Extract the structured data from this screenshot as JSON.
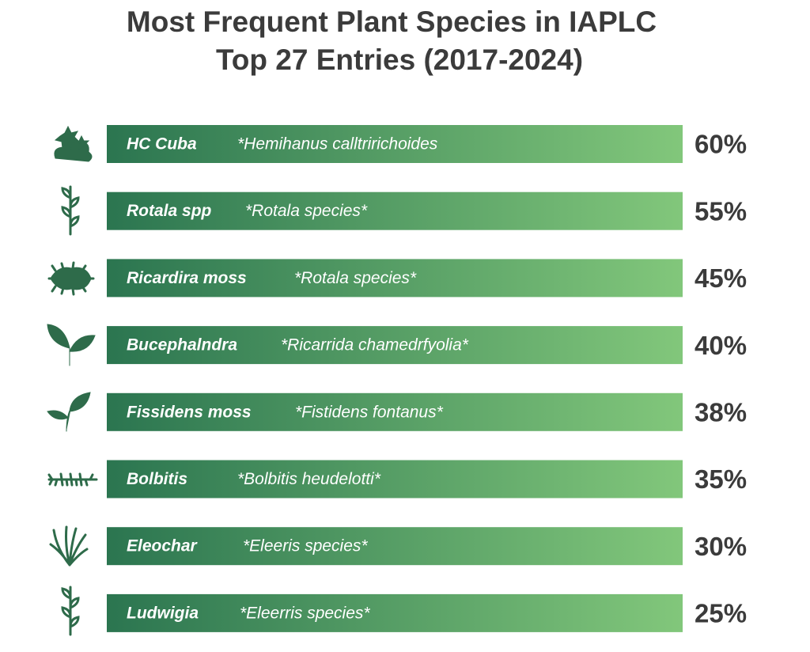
{
  "header": {
    "title": "Most Frequent Plant Species in IAPLC",
    "subtitle": "Top 27 Entries (2017-2024)"
  },
  "rows": [
    {
      "name": "HC Cuba",
      "species": "*Hemihanus calltririchoides",
      "percent": "60%"
    },
    {
      "name": "Rotala spp",
      "species": "*Rotala species*",
      "percent": "55%"
    },
    {
      "name": "Ricardira moss",
      "species": "*Rotala species*",
      "percent": "45%"
    },
    {
      "name": "Bucephalndra",
      "species": "*Ricarrida chamedrfyolia*",
      "percent": "40%"
    },
    {
      "name": "Fissidens moss",
      "species": "*Fistidens fontanus*",
      "percent": "38%"
    },
    {
      "name": "Bolbitis",
      "species": "*Bolbitis heudelotti*",
      "percent": "35%"
    },
    {
      "name": "Eleochar",
      "species": "*Eleeris species*",
      "percent": "30%"
    },
    {
      "name": "Ludwigia",
      "species": "*Eleerris species*",
      "percent": "25%"
    }
  ]
}
